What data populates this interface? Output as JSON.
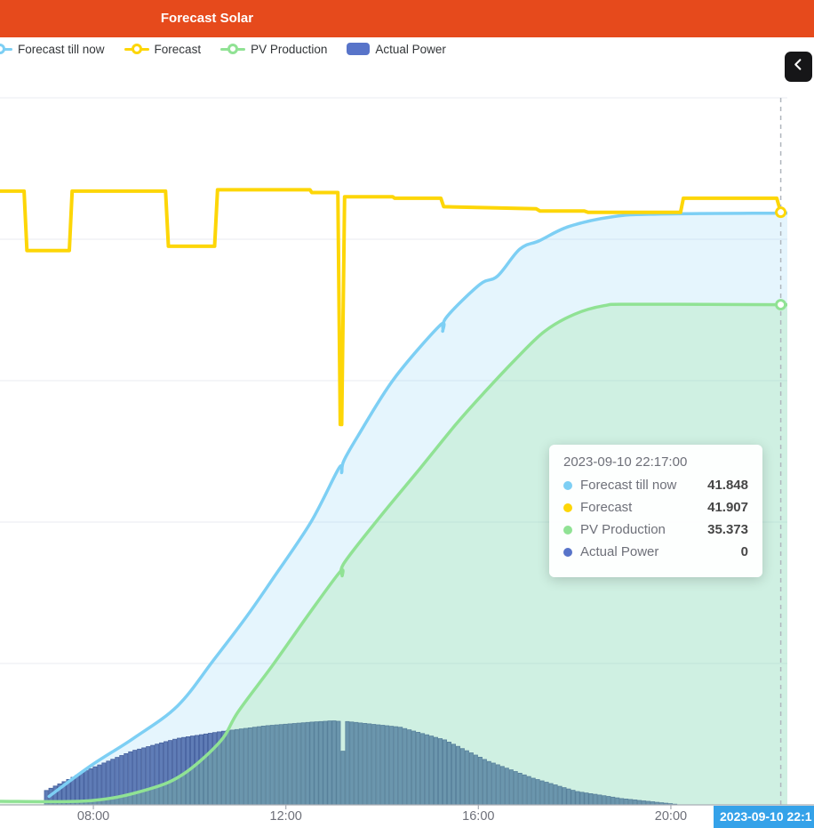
{
  "header": {
    "title": "Forecast Solar",
    "bg_color": "#e64a1c"
  },
  "legend": {
    "items": [
      {
        "label": "Forecast till now",
        "color": "#7dcff4",
        "marker": "line"
      },
      {
        "label": "Forecast",
        "color": "#fdd607",
        "marker": "line"
      },
      {
        "label": "PV Production",
        "color": "#90e294",
        "marker": "line"
      },
      {
        "label": "Actual Power",
        "color": "#5874c9",
        "marker": "rect"
      }
    ]
  },
  "collapse_button": {
    "icon": "chevron-left"
  },
  "tooltip": {
    "timestamp": "2023-09-10 22:17:00",
    "rows": [
      {
        "label": "Forecast till now",
        "value": "41.848",
        "color": "#7dcff4"
      },
      {
        "label": "Forecast",
        "value": "41.907",
        "color": "#fdd607"
      },
      {
        "label": "PV Production",
        "value": "35.373",
        "color": "#90e294"
      },
      {
        "label": "Actual Power",
        "value": "0",
        "color": "#5874c9"
      }
    ]
  },
  "x_axis": {
    "ticks": [
      {
        "label": "08:00",
        "hour": 8
      },
      {
        "label": "12:00",
        "hour": 12
      },
      {
        "label": "16:00",
        "hour": 16
      },
      {
        "label": "20:00",
        "hour": 20
      }
    ],
    "pointer": {
      "label": "2023-09-10 22:1",
      "hour": 22.283,
      "bg_color": "#35a2e9"
    }
  },
  "chart_data": {
    "type": "combo",
    "title": "Forecast Solar",
    "x_unit": "hour_of_day",
    "x_range_hours": [
      6.06,
      22.42
    ],
    "y_range": [
      0,
      50
    ],
    "gridline_values": [
      10,
      20,
      30,
      40,
      50
    ],
    "grid_color": "#e8ebf2",
    "axis_color": "#a9adb5",
    "crosshair_hour": 22.283,
    "series": [
      {
        "name": "Forecast till now",
        "type": "line",
        "smooth": true,
        "color": "#7dcff4",
        "fill": "rgba(125,207,244,0.20)",
        "end_marker": false,
        "points": [
          [
            7.08,
            0.6
          ],
          [
            7.96,
            2.8
          ],
          [
            8.83,
            4.7
          ],
          [
            9.75,
            7.0
          ],
          [
            10.49,
            10.2
          ],
          [
            11.18,
            13.3
          ],
          [
            11.73,
            16.0
          ],
          [
            12.52,
            20.0
          ],
          [
            13.1,
            23.8
          ],
          [
            13.16,
            23.5
          ],
          [
            13.2,
            24.3
          ],
          [
            13.5,
            26.1
          ],
          [
            14.24,
            30.1
          ],
          [
            15.2,
            33.9
          ],
          [
            15.26,
            33.5
          ],
          [
            15.34,
            34.5
          ],
          [
            16.03,
            36.8
          ],
          [
            16.4,
            37.4
          ],
          [
            16.86,
            39.3
          ],
          [
            17.27,
            39.9
          ],
          [
            17.88,
            40.9
          ],
          [
            18.8,
            41.6
          ],
          [
            19.72,
            41.78
          ],
          [
            22.283,
            41.848
          ],
          [
            22.45,
            41.848
          ]
        ]
      },
      {
        "name": "Actual Power",
        "type": "bar",
        "color": "#5f7cb6",
        "edge_color": "#46619e",
        "points": [
          [
            6.93,
            0
          ],
          [
            6.98,
            0.95
          ],
          [
            7.9,
            2.5
          ],
          [
            8.8,
            3.8
          ],
          [
            9.75,
            4.7
          ],
          [
            10.68,
            5.2
          ],
          [
            11.6,
            5.6
          ],
          [
            12.52,
            5.85
          ],
          [
            12.98,
            5.95
          ],
          [
            13.14,
            5.9
          ],
          [
            13.16,
            3.8
          ],
          [
            13.24,
            3.8
          ],
          [
            13.26,
            5.9
          ],
          [
            14.37,
            5.5
          ],
          [
            15.3,
            4.6
          ],
          [
            16.2,
            3.1
          ],
          [
            17.13,
            1.9
          ],
          [
            18.05,
            0.95
          ],
          [
            18.98,
            0.45
          ],
          [
            19.9,
            0.12
          ],
          [
            20.15,
            0.03
          ]
        ]
      },
      {
        "name": "PV Production",
        "type": "line",
        "smooth": true,
        "color": "#90e294",
        "fill": "rgba(144,226,148,0.25)",
        "end_marker": true,
        "end_value": 35.373,
        "points": [
          [
            6.06,
            0.25
          ],
          [
            7.96,
            0.3
          ],
          [
            9.14,
            1.1
          ],
          [
            9.88,
            2.2
          ],
          [
            10.64,
            4.5
          ],
          [
            11.01,
            6.6
          ],
          [
            11.73,
            9.9
          ],
          [
            12.52,
            13.7
          ],
          [
            13.13,
            16.5
          ],
          [
            13.17,
            16.2
          ],
          [
            13.21,
            17.1
          ],
          [
            13.94,
            20.3
          ],
          [
            14.79,
            23.8
          ],
          [
            15.53,
            26.9
          ],
          [
            16.16,
            29.3
          ],
          [
            16.77,
            31.5
          ],
          [
            17.38,
            33.5
          ],
          [
            18.0,
            34.7
          ],
          [
            18.61,
            35.3
          ],
          [
            19.22,
            35.4
          ],
          [
            22.283,
            35.373
          ],
          [
            22.45,
            35.373
          ]
        ]
      },
      {
        "name": "Forecast",
        "type": "line",
        "smooth": false,
        "color": "#fdd607",
        "fill": null,
        "end_marker": true,
        "end_value": 41.907,
        "points": [
          [
            6.06,
            43.4
          ],
          [
            6.56,
            43.4
          ],
          [
            6.62,
            39.2
          ],
          [
            7.5,
            39.2
          ],
          [
            7.56,
            43.4
          ],
          [
            9.5,
            43.4
          ],
          [
            9.56,
            39.5
          ],
          [
            10.52,
            39.5
          ],
          [
            10.58,
            43.5
          ],
          [
            12.5,
            43.5
          ],
          [
            12.54,
            43.3
          ],
          [
            13.08,
            43.3
          ],
          [
            13.13,
            26.9
          ],
          [
            13.16,
            26.9
          ],
          [
            13.22,
            43.0
          ],
          [
            14.22,
            43.0
          ],
          [
            14.26,
            42.9
          ],
          [
            15.22,
            42.9
          ],
          [
            15.28,
            42.3
          ],
          [
            17.2,
            42.15
          ],
          [
            17.28,
            42.0
          ],
          [
            18.2,
            42.0
          ],
          [
            18.28,
            41.9
          ],
          [
            20.2,
            41.9
          ],
          [
            20.26,
            42.9
          ],
          [
            22.2,
            42.9
          ],
          [
            22.283,
            41.907
          ]
        ]
      }
    ]
  }
}
